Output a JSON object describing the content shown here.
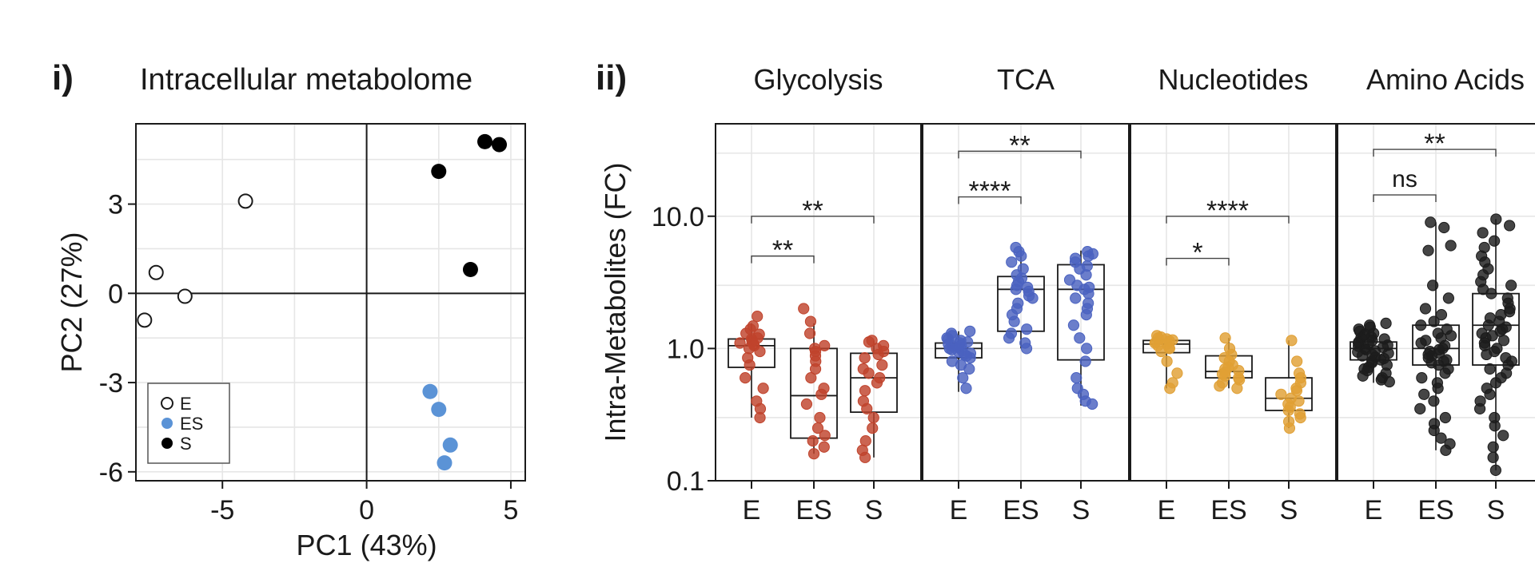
{
  "chart_data": [
    {
      "type": "scatter",
      "panel_label": "i)",
      "title": "Intracellular metabolome",
      "xlabel": "PC1 (43%)",
      "ylabel": "PC2 (27%)",
      "xlim": [
        -8,
        5.5
      ],
      "ylim": [
        -6.3,
        5.7
      ],
      "xticks": [
        -5,
        0,
        5
      ],
      "yticks": [
        -6,
        -3,
        0,
        3
      ],
      "xtick_labels": [
        "-5",
        "0",
        "5"
      ],
      "ytick_labels": [
        "-6",
        "-3",
        "0",
        "3"
      ],
      "grid": true,
      "legend_position": "bottom-left",
      "series": [
        {
          "name": "E",
          "color": "#1a1a1a",
          "fill": "none",
          "x": [
            -4.2,
            -7.3,
            -6.3,
            -7.7
          ],
          "y": [
            3.1,
            0.7,
            -0.1,
            -0.9
          ]
        },
        {
          "name": "ES",
          "color": "#5b93d6",
          "fill": "solid",
          "x": [
            2.2,
            2.5,
            2.9,
            2.7
          ],
          "y": [
            -3.3,
            -3.9,
            -5.1,
            -5.7
          ]
        },
        {
          "name": "S",
          "color": "#000000",
          "fill": "solid",
          "x": [
            4.1,
            4.6,
            2.5,
            3.6
          ],
          "y": [
            5.1,
            5.0,
            4.1,
            0.8
          ]
        }
      ]
    },
    {
      "type": "box",
      "panel_label": "ii)",
      "ylabel": "Intra-Metabolites (FC)",
      "yscale": "log",
      "ylim": [
        0.1,
        50
      ],
      "yticks": [
        0.1,
        1.0,
        10.0
      ],
      "ytick_labels": [
        "0.1",
        "1.0",
        "10.0"
      ],
      "categories": [
        "E",
        "ES",
        "S"
      ],
      "panels": [
        {
          "title": "Glycolysis",
          "color": "#c0432c",
          "boxes": [
            {
              "group": "E",
              "q1": 0.72,
              "median": 1.05,
              "q3": 1.18,
              "whisker_low": 0.3,
              "whisker_high": 1.55
            },
            {
              "group": "ES",
              "q1": 0.21,
              "median": 0.44,
              "q3": 1.0,
              "whisker_low": 0.16,
              "whisker_high": 1.55
            },
            {
              "group": "S",
              "q1": 0.33,
              "median": 0.6,
              "q3": 0.92,
              "whisker_low": 0.15,
              "whisker_high": 1.15
            }
          ],
          "points": [
            [
              1.75,
              1.48,
              1.4,
              1.3,
              1.28,
              1.2,
              1.18,
              1.15,
              1.12,
              1.1,
              1.08,
              1.05,
              1.0,
              0.95,
              0.85,
              0.75,
              0.6,
              0.5,
              0.4,
              0.35,
              0.3
            ],
            [
              2.0,
              1.6,
              1.3,
              1.05,
              1.0,
              0.95,
              0.88,
              0.8,
              0.7,
              0.6,
              0.5,
              0.45,
              0.38,
              0.3,
              0.25,
              0.22,
              0.2,
              0.18,
              0.16
            ],
            [
              1.15,
              1.12,
              1.05,
              1.0,
              0.95,
              0.9,
              0.85,
              0.75,
              0.7,
              0.65,
              0.6,
              0.55,
              0.48,
              0.4,
              0.35,
              0.3,
              0.25,
              0.2,
              0.17,
              0.15
            ]
          ],
          "significance": [
            {
              "from": "E",
              "to": "ES",
              "label": "**",
              "y": 5.0
            },
            {
              "from": "E",
              "to": "S",
              "label": "**",
              "y": 10.0
            }
          ]
        },
        {
          "title": "TCA",
          "color": "#4a62c0",
          "boxes": [
            {
              "group": "E",
              "q1": 0.85,
              "median": 1.0,
              "q3": 1.1,
              "whisker_low": 0.47,
              "whisker_high": 1.35
            },
            {
              "group": "ES",
              "q1": 1.35,
              "median": 2.8,
              "q3": 3.5,
              "whisker_low": 1.0,
              "whisker_high": 5.8
            },
            {
              "group": "S",
              "q1": 0.82,
              "median": 2.8,
              "q3": 4.3,
              "whisker_low": 0.37,
              "whisker_high": 5.5
            }
          ],
          "points": [
            [
              1.35,
              1.3,
              1.25,
              1.2,
              1.18,
              1.15,
              1.12,
              1.1,
              1.08,
              1.06,
              1.04,
              1.02,
              1.0,
              0.98,
              0.96,
              0.94,
              0.92,
              0.9,
              0.88,
              0.85,
              0.8,
              0.75,
              0.7,
              0.6,
              0.5
            ],
            [
              5.8,
              5.4,
              5.0,
              4.5,
              4.0,
              3.6,
              3.4,
              3.2,
              3.0,
              2.9,
              2.8,
              2.7,
              2.5,
              2.4,
              2.2,
              2.0,
              1.8,
              1.6,
              1.4,
              1.3,
              1.2,
              1.1,
              1.0
            ],
            [
              5.4,
              5.2,
              5.0,
              4.8,
              4.5,
              4.2,
              4.0,
              3.6,
              3.3,
              3.0,
              2.9,
              2.8,
              2.6,
              2.4,
              2.2,
              2.0,
              1.8,
              1.5,
              1.2,
              1.0,
              0.8,
              0.6,
              0.5,
              0.45,
              0.4,
              0.38
            ]
          ],
          "significance": [
            {
              "from": "E",
              "to": "ES",
              "label": "****",
              "y": 14.0
            },
            {
              "from": "E",
              "to": "S",
              "label": "**",
              "y": 31.0
            }
          ]
        },
        {
          "title": "Nucleotides",
          "color": "#e0a035",
          "boxes": [
            {
              "group": "E",
              "q1": 0.93,
              "median": 1.08,
              "q3": 1.15,
              "whisker_low": 0.5,
              "whisker_high": 1.25
            },
            {
              "group": "ES",
              "q1": 0.6,
              "median": 0.67,
              "q3": 0.88,
              "whisker_low": 0.5,
              "whisker_high": 1.2
            },
            {
              "group": "S",
              "q1": 0.34,
              "median": 0.42,
              "q3": 0.6,
              "whisker_low": 0.25,
              "whisker_high": 1.15
            }
          ],
          "points": [
            [
              1.25,
              1.22,
              1.2,
              1.18,
              1.16,
              1.14,
              1.12,
              1.1,
              1.08,
              1.05,
              1.02,
              1.0,
              0.95,
              0.8,
              0.65,
              0.55,
              0.5
            ],
            [
              1.2,
              1.0,
              0.9,
              0.85,
              0.8,
              0.75,
              0.72,
              0.7,
              0.68,
              0.66,
              0.64,
              0.62,
              0.6,
              0.58,
              0.55,
              0.52,
              0.5
            ],
            [
              1.15,
              0.8,
              0.65,
              0.6,
              0.55,
              0.5,
              0.48,
              0.45,
              0.42,
              0.4,
              0.38,
              0.36,
              0.34,
              0.32,
              0.3,
              0.28,
              0.25
            ]
          ],
          "significance": [
            {
              "from": "E",
              "to": "ES",
              "label": "*",
              "y": 4.8
            },
            {
              "from": "E",
              "to": "S",
              "label": "****",
              "y": 10.0
            }
          ]
        },
        {
          "title": "Amino Acids",
          "color": "#1c1c1c",
          "boxes": [
            {
              "group": "E",
              "q1": 0.82,
              "median": 1.0,
              "q3": 1.12,
              "whisker_low": 0.55,
              "whisker_high": 1.5
            },
            {
              "group": "ES",
              "q1": 0.75,
              "median": 1.0,
              "q3": 1.5,
              "whisker_low": 0.17,
              "whisker_high": 9.0
            },
            {
              "group": "S",
              "q1": 0.75,
              "median": 1.5,
              "q3": 2.6,
              "whisker_low": 0.12,
              "whisker_high": 9.5
            }
          ],
          "points": [
            [
              1.55,
              1.5,
              1.45,
              1.4,
              1.35,
              1.3,
              1.28,
              1.25,
              1.22,
              1.2,
              1.18,
              1.15,
              1.12,
              1.1,
              1.08,
              1.06,
              1.04,
              1.02,
              1.0,
              0.98,
              0.96,
              0.94,
              0.92,
              0.9,
              0.88,
              0.86,
              0.84,
              0.82,
              0.8,
              0.78,
              0.75,
              0.72,
              0.7,
              0.68,
              0.65,
              0.62,
              0.6,
              0.58,
              0.56
            ],
            [
              9.0,
              8.2,
              6.0,
              5.5,
              3.0,
              2.4,
              2.0,
              1.8,
              1.6,
              1.5,
              1.4,
              1.3,
              1.25,
              1.2,
              1.15,
              1.1,
              1.05,
              1.0,
              0.98,
              0.95,
              0.92,
              0.9,
              0.88,
              0.85,
              0.82,
              0.8,
              0.78,
              0.75,
              0.7,
              0.65,
              0.6,
              0.55,
              0.5,
              0.45,
              0.4,
              0.35,
              0.3,
              0.27,
              0.24,
              0.21,
              0.19,
              0.17
            ],
            [
              9.5,
              8.5,
              7.5,
              6.5,
              5.8,
              5.0,
              4.5,
              4.0,
              3.6,
              3.2,
              3.0,
              2.8,
              2.6,
              2.4,
              2.2,
              2.0,
              1.9,
              1.8,
              1.7,
              1.6,
              1.5,
              1.45,
              1.4,
              1.35,
              1.3,
              1.25,
              1.2,
              1.15,
              1.1,
              1.05,
              1.0,
              0.95,
              0.9,
              0.85,
              0.8,
              0.75,
              0.7,
              0.65,
              0.6,
              0.55,
              0.5,
              0.45,
              0.4,
              0.35,
              0.3,
              0.26,
              0.22,
              0.18,
              0.15,
              0.12
            ]
          ],
          "significance": [
            {
              "from": "E",
              "to": "ES",
              "label": "ns",
              "y": 14.5
            },
            {
              "from": "E",
              "to": "S",
              "label": "**",
              "y": 32.0
            }
          ]
        }
      ]
    }
  ]
}
